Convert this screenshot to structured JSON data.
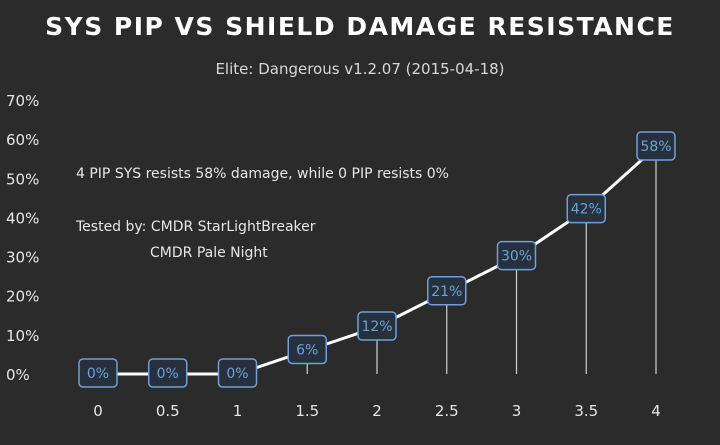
{
  "chart_data": {
    "type": "line",
    "title": "SYS PIP VS SHIELD DAMAGE RESISTANCE",
    "subtitle": "Elite: Dangerous v1.2.07 (2015-04-18)",
    "x": [
      0,
      0.5,
      1,
      1.5,
      2,
      2.5,
      3,
      3.5,
      4
    ],
    "x_tick_labels": [
      "0",
      "0.5",
      "1",
      "1.5",
      "2",
      "2.5",
      "3",
      "3.5",
      "4"
    ],
    "values": [
      0,
      0,
      0,
      6,
      12,
      21,
      30,
      42,
      58
    ],
    "data_labels": [
      "0%",
      "0%",
      "0%",
      "6%",
      "12%",
      "21%",
      "30%",
      "42%",
      "58%"
    ],
    "y_tick_labels": [
      "0%",
      "10%",
      "20%",
      "30%",
      "40%",
      "50%",
      "60%",
      "70%"
    ],
    "ylim": [
      0,
      70
    ],
    "xlabel": "",
    "ylabel": "",
    "grid": false,
    "line_color": "#ffffff",
    "label_color": "#6fa0d8",
    "background": "#2b2b2b",
    "annotations": [
      "4 PIP SYS resists 58% damage, while 0 PIP resists 0%",
      "Tested by: CMDR StarLightBreaker",
      "CMDR Pale Night"
    ]
  }
}
